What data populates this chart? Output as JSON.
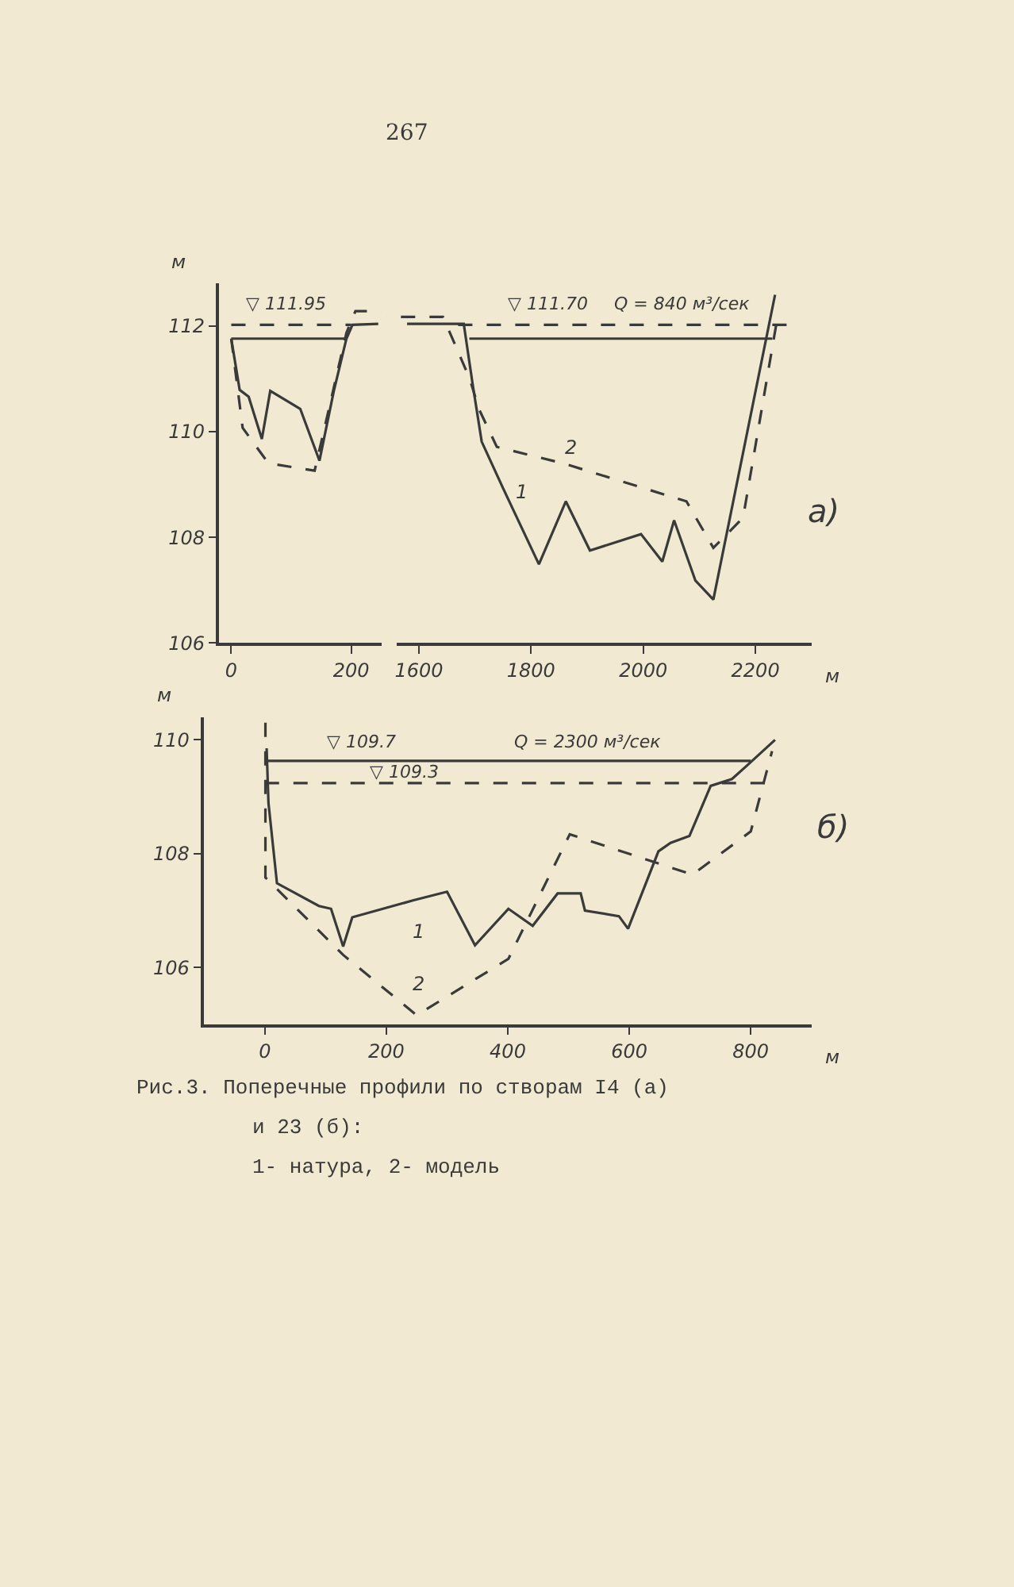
{
  "chart_data": [
    {
      "type": "line",
      "ylabel": "м",
      "xlim": [
        -20,
        250
      ],
      "ylim": [
        106,
        112.8
      ],
      "xticks": [
        0,
        200
      ],
      "yticks": [
        106,
        108,
        110,
        112
      ],
      "grid": false,
      "marker": "none",
      "series": [
        {
          "color": "#3a3a3a",
          "line_style": "solid",
          "x": [
            0,
            14,
            29,
            51,
            65,
            115,
            147,
            171,
            192,
            202,
            245
          ],
          "values": [
            111.76,
            110.79,
            110.66,
            109.86,
            110.77,
            110.43,
            109.45,
            110.77,
            111.76,
            112.02,
            112.04
          ]
        },
        {
          "color": "#3a3a3a",
          "line_style": "dashed",
          "x": [
            0,
            19,
            62,
            139,
            192,
            207,
            250
          ],
          "values": [
            111.76,
            110.07,
            109.4,
            109.26,
            111.87,
            112.28,
            112.28
          ]
        },
        {
          "color": "#3a3a3a",
          "line_style": "solid",
          "x": [
            0,
            192
          ],
          "values": [
            111.76,
            111.76
          ]
        },
        {
          "color": "#3a3a3a",
          "line_style": "dashed",
          "x": [
            0,
            200
          ],
          "values": [
            112.02,
            112.02
          ]
        }
      ],
      "annotations": [
        "▽ 111.95",
        "267"
      ]
    },
    {
      "type": "line",
      "xlabel": "м",
      "xlim": [
        1560,
        2300
      ],
      "xticks": [
        1600,
        1800,
        2000,
        2200
      ],
      "yticks": [
        106,
        108,
        110,
        112
      ],
      "tick_labels": "x",
      "grid": false,
      "marker": "none",
      "series": [
        {
          "color": "#3a3a3a",
          "line_style": "solid",
          "x": [
            1579,
            1680,
            1696,
            1712,
            1750,
            1814,
            1862,
            1905,
            1996,
            2034,
            2055,
            2093,
            2125,
            2235
          ],
          "values": [
            112.04,
            112.04,
            110.89,
            109.81,
            108.93,
            107.49,
            108.68,
            107.75,
            108.06,
            107.54,
            108.32,
            107.18,
            106.82,
            112.59
          ]
        },
        {
          "color": "#3a3a3a",
          "line_style": "dashed",
          "x": [
            1568,
            1643,
            1664,
            1691,
            1707,
            1739,
            1857,
            2077,
            2125,
            2178,
            2237
          ],
          "values": [
            112.17,
            112.17,
            111.66,
            110.99,
            110.43,
            109.71,
            109.4,
            108.68,
            107.8,
            108.37,
            112.02
          ]
        },
        {
          "color": "#3a3a3a",
          "line_style": "solid",
          "x": [
            1690,
            2230
          ],
          "values": [
            111.76,
            111.76
          ]
        },
        {
          "color": "#3a3a3a",
          "line_style": "dashed",
          "x": [
            1670,
            2260
          ],
          "values": [
            112.02,
            112.02
          ]
        }
      ],
      "annotations": [
        "▽ 111.70",
        "Q = 840 м³/сек",
        "1",
        "2",
        "а)"
      ]
    },
    {
      "type": "line",
      "ylabel": "м",
      "xlabel": "м",
      "xlim": [
        -100,
        900
      ],
      "ylim": [
        105,
        110.4
      ],
      "xticks": [
        0,
        200,
        400,
        600,
        800
      ],
      "yticks": [
        106,
        108,
        110
      ],
      "grid": false,
      "marker": "none",
      "series": [
        {
          "color": "#3a3a3a",
          "line_style": "solid",
          "x": [
            3,
            6,
            20,
            89,
            109,
            129,
            144,
            245,
            300,
            346,
            401,
            441,
            482,
            520,
            527,
            583,
            598,
            648,
            668,
            699,
            734,
            769,
            794,
            840
          ],
          "values": [
            109.85,
            108.89,
            107.48,
            107.08,
            107.03,
            106.37,
            106.88,
            107.18,
            107.33,
            106.39,
            107.03,
            106.73,
            107.3,
            107.3,
            107.0,
            106.9,
            106.68,
            108.04,
            108.19,
            108.31,
            109.19,
            109.31,
            109.55,
            110.0
          ]
        },
        {
          "color": "#3a3a3a",
          "line_style": "dashed",
          "x": [
            1,
            1,
            129,
            250,
            401,
            502,
            704,
            800,
            835
          ],
          "values": [
            110.3,
            107.58,
            106.22,
            105.16,
            106.15,
            108.34,
            107.63,
            108.39,
            109.8
          ]
        },
        {
          "color": "#3a3a3a",
          "line_style": "solid",
          "x": [
            0,
            800
          ],
          "values": [
            109.63,
            109.63
          ]
        },
        {
          "color": "#3a3a3a",
          "line_style": "dashed",
          "x": [
            0,
            830
          ],
          "values": [
            109.24,
            109.24
          ]
        }
      ],
      "annotations": [
        "▽ 109.7",
        "▽ 109.3",
        "Q = 2300 м³/сек",
        "1",
        "2",
        "б)",
        "Рис.3. Поперечные профили по створам I4 (а)",
        "и 23 (б):",
        "1- натура, 2- модель"
      ]
    }
  ]
}
